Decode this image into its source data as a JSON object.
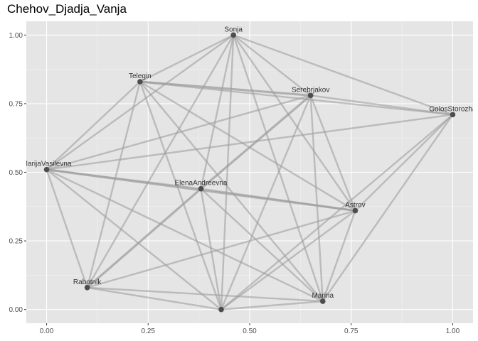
{
  "chart_data": {
    "type": "scatter",
    "title": "Chehov_Djadja_Vanja",
    "xlabel": "",
    "ylabel": "",
    "xlim": [
      -0.05,
      1.05
    ],
    "ylim": [
      -0.05,
      1.05
    ],
    "x_ticks": [
      "0.00",
      "0.25",
      "0.50",
      "0.75",
      "1.00"
    ],
    "y_ticks": [
      "0.00",
      "0.25",
      "0.50",
      "0.75",
      "1.00"
    ],
    "grid": true,
    "background": "#e5e5e5",
    "node_color": "#4d4d4d",
    "edge_color": "#9e9e9e",
    "nodes": [
      {
        "id": "Sonja",
        "label": "Sonja",
        "x": 0.46,
        "y": 1.0
      },
      {
        "id": "Telegin",
        "label": "Telegin",
        "x": 0.23,
        "y": 0.83
      },
      {
        "id": "Serebrjakov",
        "label": "Serebrjakov",
        "x": 0.65,
        "y": 0.78
      },
      {
        "id": "GolosStorozha",
        "label": "GolosStorozha",
        "x": 1.0,
        "y": 0.71
      },
      {
        "id": "MarijaVasilevna",
        "label": "MarijaVasilevna",
        "x": 0.0,
        "y": 0.51
      },
      {
        "id": "ElenaAndreevna",
        "label": "ElenaAndreevna",
        "x": 0.38,
        "y": 0.44
      },
      {
        "id": "Astrov",
        "label": "Astrov",
        "x": 0.76,
        "y": 0.36
      },
      {
        "id": "Rabotnik",
        "label": "Rabotnik",
        "x": 0.1,
        "y": 0.08
      },
      {
        "id": "Marina",
        "label": "Marina",
        "x": 0.68,
        "y": 0.03
      },
      {
        "id": "Vojnickij",
        "label": "",
        "x": 0.43,
        "y": 0.0
      }
    ],
    "edges": [
      [
        "Sonja",
        "Telegin",
        1
      ],
      [
        "Sonja",
        "MarijaVasilevna",
        1
      ],
      [
        "Sonja",
        "Serebrjakov",
        1
      ],
      [
        "Sonja",
        "GolosStorozha",
        1
      ],
      [
        "Sonja",
        "Astrov",
        1
      ],
      [
        "Sonja",
        "Marina",
        1
      ],
      [
        "Sonja",
        "Rabotnik",
        1
      ],
      [
        "Sonja",
        "Vojnickij",
        1
      ],
      [
        "Sonja",
        "ElenaAndreevna",
        1
      ],
      [
        "Telegin",
        "MarijaVasilevna",
        1
      ],
      [
        "Telegin",
        "Serebrjakov",
        2
      ],
      [
        "Telegin",
        "GolosStorozha",
        1
      ],
      [
        "Telegin",
        "Astrov",
        1
      ],
      [
        "Telegin",
        "Marina",
        1
      ],
      [
        "Telegin",
        "Rabotnik",
        1
      ],
      [
        "Telegin",
        "Vojnickij",
        1
      ],
      [
        "Serebrjakov",
        "MarijaVasilevna",
        1
      ],
      [
        "Serebrjakov",
        "GolosStorozha",
        1
      ],
      [
        "Serebrjakov",
        "ElenaAndreevna",
        2
      ],
      [
        "Serebrjakov",
        "Astrov",
        1
      ],
      [
        "Serebrjakov",
        "Marina",
        1
      ],
      [
        "Serebrjakov",
        "Vojnickij",
        1
      ],
      [
        "GolosStorozha",
        "Astrov",
        1
      ],
      [
        "GolosStorozha",
        "Marina",
        1
      ],
      [
        "GolosStorozha",
        "Vojnickij",
        1
      ],
      [
        "GolosStorozha",
        "MarijaVasilevna",
        1
      ],
      [
        "MarijaVasilevna",
        "Astrov",
        2
      ],
      [
        "MarijaVasilevna",
        "ElenaAndreevna",
        1
      ],
      [
        "MarijaVasilevna",
        "Marina",
        1
      ],
      [
        "MarijaVasilevna",
        "Rabotnik",
        1
      ],
      [
        "MarijaVasilevna",
        "Vojnickij",
        1
      ],
      [
        "ElenaAndreevna",
        "Astrov",
        1
      ],
      [
        "ElenaAndreevna",
        "Rabotnik",
        2
      ],
      [
        "ElenaAndreevna",
        "Marina",
        1
      ],
      [
        "ElenaAndreevna",
        "Vojnickij",
        1
      ],
      [
        "Astrov",
        "Rabotnik",
        1
      ],
      [
        "Astrov",
        "Marina",
        1
      ],
      [
        "Astrov",
        "Vojnickij",
        1
      ],
      [
        "Rabotnik",
        "Marina",
        1
      ],
      [
        "Rabotnik",
        "Vojnickij",
        1
      ],
      [
        "Marina",
        "Vojnickij",
        1
      ]
    ]
  }
}
